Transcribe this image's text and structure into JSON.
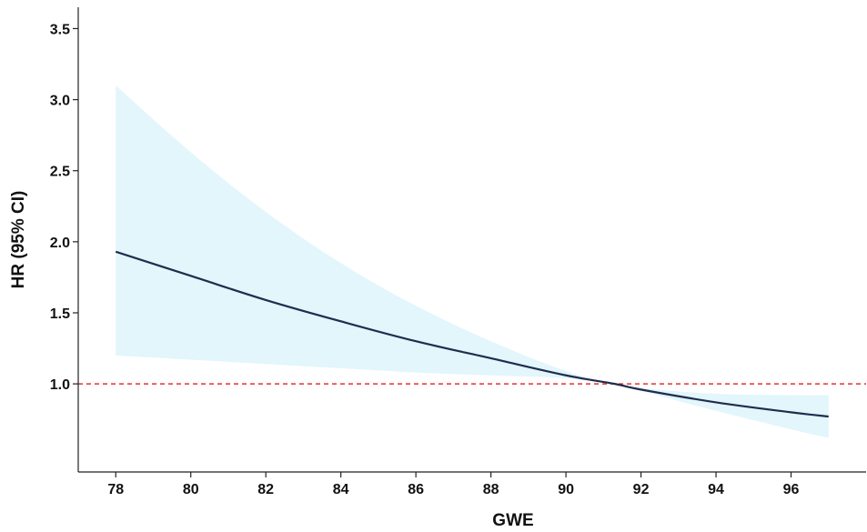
{
  "chart_data": {
    "type": "line",
    "title": "",
    "xlabel": "GWE",
    "ylabel": "HR (95% CI)",
    "xlim": [
      77,
      98
    ],
    "ylim": [
      0.38,
      3.65
    ],
    "x_ticks": [
      78,
      80,
      82,
      84,
      86,
      88,
      90,
      92,
      94,
      96
    ],
    "x_tick_labels": [
      "78",
      "80",
      "82",
      "84",
      "86",
      "88",
      "90",
      "92",
      "94",
      "96"
    ],
    "y_ticks": [
      1.0,
      1.5,
      2.0,
      2.5,
      3.0,
      3.5
    ],
    "y_tick_labels": [
      "1.0",
      "1.5",
      "2.0",
      "2.5",
      "3.0",
      "3.5"
    ],
    "grid": false,
    "reference_line": {
      "y": 1.0,
      "color": "#e8322f",
      "style": "dashed"
    },
    "series": [
      {
        "x": [
          78,
          80,
          82,
          84,
          86,
          88,
          90,
          91.3,
          92,
          94,
          96,
          97
        ],
        "y": [
          1.93,
          1.76,
          1.59,
          1.44,
          1.3,
          1.18,
          1.06,
          1.0,
          0.96,
          0.87,
          0.8,
          0.77
        ],
        "ci_lower": [
          1.2,
          1.17,
          1.14,
          1.11,
          1.08,
          1.06,
          1.04,
          1.0,
          0.95,
          0.81,
          0.68,
          0.62
        ],
        "ci_upper": [
          3.1,
          2.63,
          2.21,
          1.85,
          1.55,
          1.3,
          1.09,
          1.0,
          0.97,
          0.93,
          0.92,
          0.92
        ],
        "line_color": "#1f2d4e",
        "band_color": "#e2f6fc"
      }
    ]
  }
}
